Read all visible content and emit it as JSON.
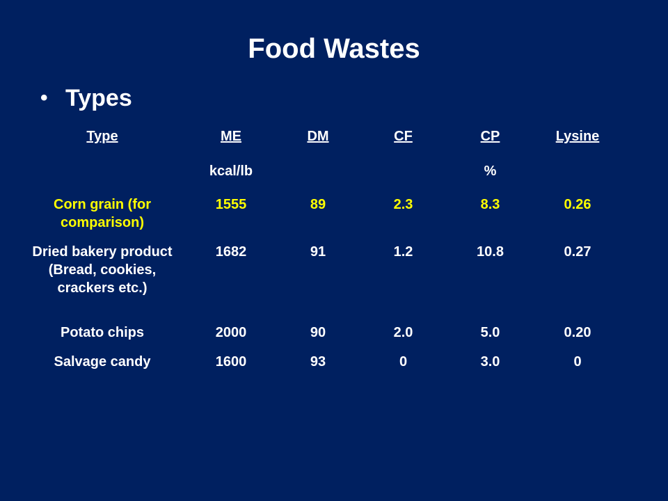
{
  "slide": {
    "title": "Food Wastes",
    "bullet": "Types"
  },
  "table": {
    "headers": [
      "Type",
      "ME",
      "DM",
      "CF",
      "CP",
      "Lysine"
    ],
    "units": [
      "",
      "kcal/lb",
      "",
      "",
      "%",
      ""
    ],
    "rows": [
      [
        "Corn grain (for comparison)",
        "1555",
        "89",
        "2.3",
        "8.3",
        "0.26"
      ],
      [
        "Dried bakery product (Bread, cookies, crackers etc.)",
        "1682",
        "91",
        "1.2",
        "10.8",
        "0.27"
      ],
      [
        "Potato chips",
        "2000",
        "90",
        "2.0",
        "5.0",
        "0.20"
      ],
      [
        "Salvage candy",
        "1600",
        "93",
        "0",
        "3.0",
        "0"
      ]
    ]
  },
  "colors": {
    "background": "#002060",
    "text": "#ffffff",
    "highlight": "#ffff00"
  }
}
